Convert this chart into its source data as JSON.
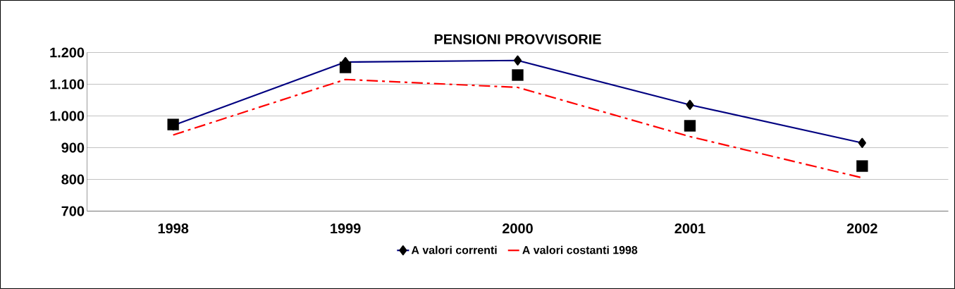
{
  "chart_data": {
    "type": "line",
    "title": "PENSIONI PROVVISORIE",
    "categories": [
      "1998",
      "1999",
      "2000",
      "2001",
      "2002"
    ],
    "series": [
      {
        "name": "A valori correnti",
        "color": "#000080",
        "values": [
          970,
          1170,
          1175,
          1035,
          915
        ],
        "marker": "diamond",
        "line_style": "solid"
      },
      {
        "name": "A valori costanti 1998",
        "color": "#ff0000",
        "values": [
          940,
          1115,
          1090,
          935,
          805
        ],
        "marker": "none",
        "line_style": "dashed"
      },
      {
        "type": "scatter",
        "color": "#000000",
        "values": [
          973,
          1153,
          1129,
          969,
          842
        ],
        "marker": "square"
      }
    ],
    "ylim": [
      700,
      1200
    ],
    "yticks": [
      700,
      800,
      900,
      {
        "value": 1000,
        "label": "1.000"
      },
      {
        "value": 1100,
        "label": "1.100"
      },
      {
        "value": 1200,
        "label": "1.200"
      }
    ],
    "grid": "y",
    "legend": "bottom"
  }
}
